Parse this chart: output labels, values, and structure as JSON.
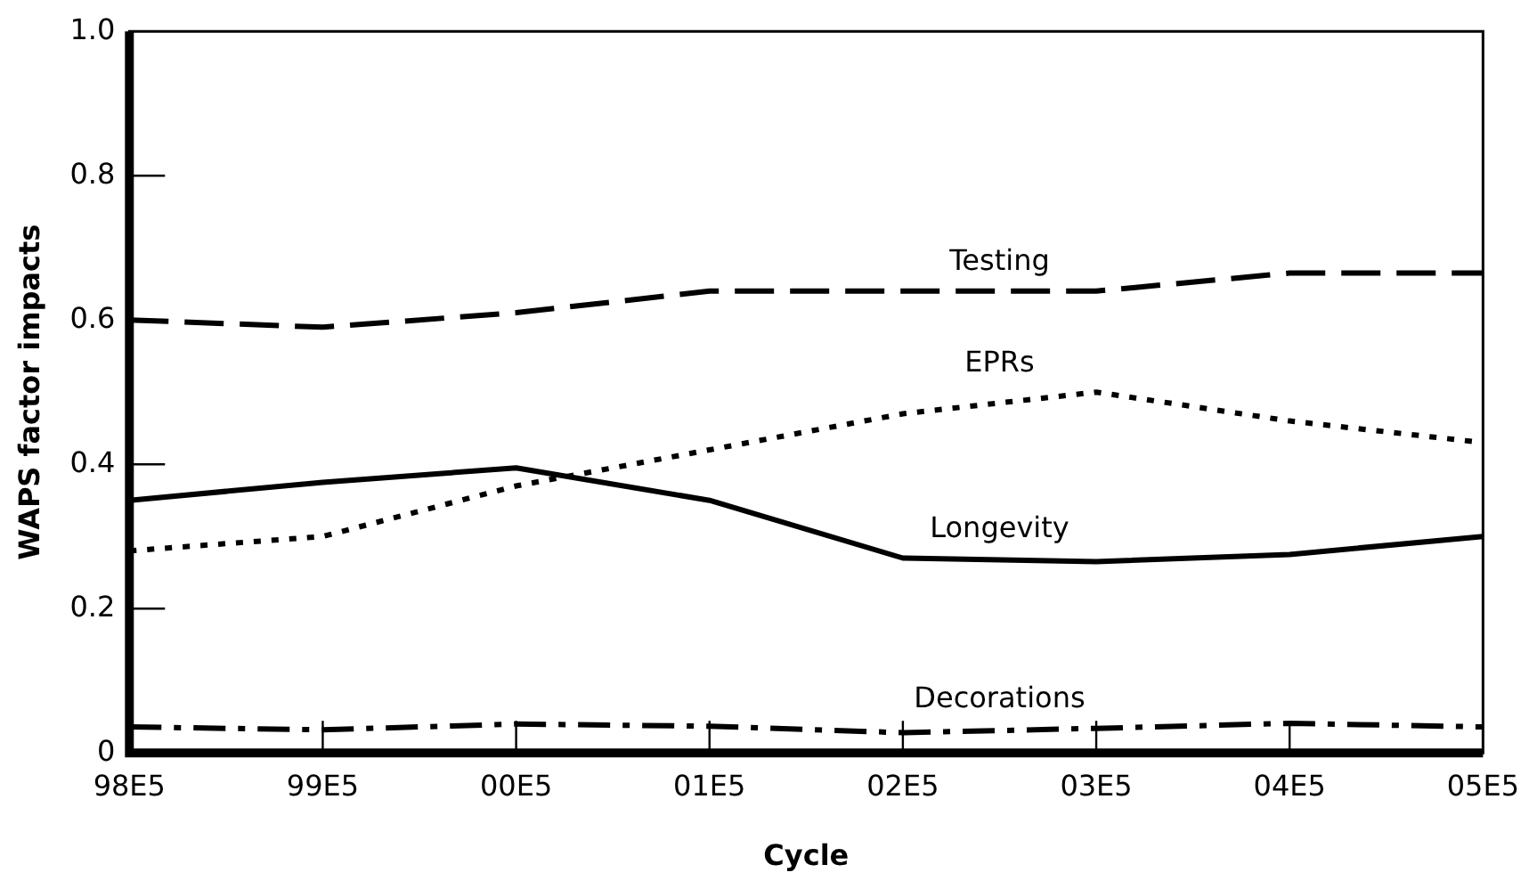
{
  "chart_data": {
    "type": "line",
    "xlabel": "Cycle",
    "ylabel": "WAPS factor impacts",
    "categories": [
      "98E5",
      "99E5",
      "00E5",
      "01E5",
      "02E5",
      "03E5",
      "04E5",
      "05E5"
    ],
    "series": [
      {
        "name": "Testing",
        "color": "#000000",
        "line_style": "dashed",
        "values": [
          0.6,
          0.59,
          0.61,
          0.64,
          0.64,
          0.64,
          0.665,
          0.665
        ]
      },
      {
        "name": "EPRs",
        "color": "#000000",
        "line_style": "dotted",
        "values": [
          0.28,
          0.3,
          0.37,
          0.42,
          0.47,
          0.5,
          0.46,
          0.43
        ]
      },
      {
        "name": "Longevity",
        "color": "#000000",
        "line_style": "solid",
        "values": [
          0.35,
          0.375,
          0.395,
          0.35,
          0.27,
          0.265,
          0.275,
          0.3
        ]
      },
      {
        "name": "Decorations",
        "color": "#000000",
        "line_style": "dashdot",
        "values": [
          0.036,
          0.032,
          0.04,
          0.037,
          0.028,
          0.034,
          0.041,
          0.036
        ]
      }
    ],
    "ylim": [
      0,
      1
    ],
    "yticks": [
      0,
      0.2,
      0.4,
      0.6,
      0.8,
      {
        "value": 1,
        "label": "1.0"
      }
    ],
    "grid": false,
    "legend": false,
    "marker": "none"
  }
}
